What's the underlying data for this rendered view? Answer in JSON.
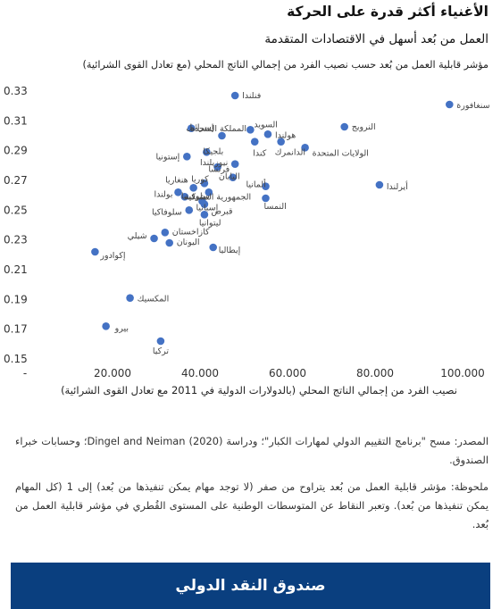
{
  "header": {
    "title": "الأغنياء أكثر قدرة على الحركة",
    "subtitle": "العمل من بُعد أسهل في الاقتصادات المتقدمة"
  },
  "source_text": "المصدر: مسح \"برنامج التقييم الدولي لمهارات الكبار\"؛ ودراسة (2020) Dingel and Neiman؛ وحسابات خبراء الصندوق.",
  "note_text": "ملحوظة: مؤشر قابلية العمل من بُعد يتراوح من صفر (لا توجد مهام يمكن تنفيذها من بُعد) إلى 1 (كل المهام يمكن تنفيذها من بُعد). وتعبر النقاط عن المتوسطات الوطنية على المستوى القُطري في مؤشر قابلية العمل من بُعد.",
  "footer_text": "صندوق النقد الدولي",
  "chart_data": {
    "type": "scatter",
    "title": "",
    "xlabel": "نصيب الفرد من إجمالي الناتج المحلي (بالدولارات الدولية في 2011 مع تعادل القوى الشرائية)",
    "ylabel": "مؤشر قابلية العمل من بُعد حسب نصيب الفرد من إجمالي الناتج المحلي (مع تعادل القوى الشرائية)",
    "xlim": [
      0,
      100000
    ],
    "ylim": [
      0.15,
      0.33
    ],
    "xticks": [
      0,
      20000,
      40000,
      60000,
      80000,
      100000
    ],
    "xtick_labels": [
      "-",
      "20.000",
      "40.000",
      "60.000",
      "80.000",
      "100.000"
    ],
    "yticks": [
      0.15,
      0.17,
      0.19,
      0.21,
      0.23,
      0.25,
      0.27,
      0.29,
      0.31,
      0.33
    ],
    "ytick_labels": [
      "0.15",
      "0.17",
      "0.19",
      "0.21",
      "0.23",
      "0.25",
      "0.27",
      "0.29",
      "0.31",
      "0.33"
    ],
    "grid": false,
    "point_color": "#4472c4",
    "points": [
      {
        "label": "سنغافورة",
        "x": 97000,
        "y": 0.321
      },
      {
        "label": "فنلندا",
        "x": 48000,
        "y": 0.327
      },
      {
        "label": "النرويج",
        "x": 73000,
        "y": 0.306
      },
      {
        "label": "السويد",
        "x": 51500,
        "y": 0.304
      },
      {
        "label": "المملكة المتحدة",
        "x": 45000,
        "y": 0.3
      },
      {
        "label": "هولندا",
        "x": 55500,
        "y": 0.301
      },
      {
        "label": "إسرائيل",
        "x": 38000,
        "y": 0.305
      },
      {
        "label": "الولايات المتحدة",
        "x": 64000,
        "y": 0.292
      },
      {
        "label": "كندا",
        "x": 52500,
        "y": 0.296
      },
      {
        "label": "الدانمرك",
        "x": 58500,
        "y": 0.296
      },
      {
        "label": "بلجيكا",
        "x": 41500,
        "y": 0.289
      },
      {
        "label": "إستونيا",
        "x": 37000,
        "y": 0.286
      },
      {
        "label": "نيوزيلندا",
        "x": 44000,
        "y": 0.279
      },
      {
        "label": "فرنسا",
        "x": 48000,
        "y": 0.281
      },
      {
        "label": "أيرلندا",
        "x": 81000,
        "y": 0.267
      },
      {
        "label": "اليابان",
        "x": 47500,
        "y": 0.272
      },
      {
        "label": "ألمانيا",
        "x": 55000,
        "y": 0.266
      },
      {
        "label": "كوريا",
        "x": 41000,
        "y": 0.268
      },
      {
        "label": "هنغاريا",
        "x": 38500,
        "y": 0.265
      },
      {
        "label": "الجمهورية التشيكية",
        "x": 42000,
        "y": 0.262
      },
      {
        "label": "بولندا",
        "x": 35000,
        "y": 0.262
      },
      {
        "label": "سلوفينيا",
        "x": 36500,
        "y": 0.259
      },
      {
        "label": "النمسا",
        "x": 55000,
        "y": 0.258
      },
      {
        "label": "قبرص",
        "x": 40500,
        "y": 0.256
      },
      {
        "label": "إسبانيا",
        "x": 41000,
        "y": 0.254
      },
      {
        "label": "سلوفاكيا",
        "x": 37500,
        "y": 0.25
      },
      {
        "label": "ليتوانيا",
        "x": 41000,
        "y": 0.247
      },
      {
        "label": "كازاخستان",
        "x": 32000,
        "y": 0.235
      },
      {
        "label": "شيلي",
        "x": 29500,
        "y": 0.231
      },
      {
        "label": "اليونان",
        "x": 33000,
        "y": 0.228
      },
      {
        "label": "إيطاليا",
        "x": 43000,
        "y": 0.225
      },
      {
        "label": "إكوادور",
        "x": 16000,
        "y": 0.222
      },
      {
        "label": "المكسيك",
        "x": 24000,
        "y": 0.191
      },
      {
        "label": "بيرو",
        "x": 18500,
        "y": 0.172
      },
      {
        "label": "تركيا",
        "x": 31000,
        "y": 0.162
      }
    ]
  }
}
